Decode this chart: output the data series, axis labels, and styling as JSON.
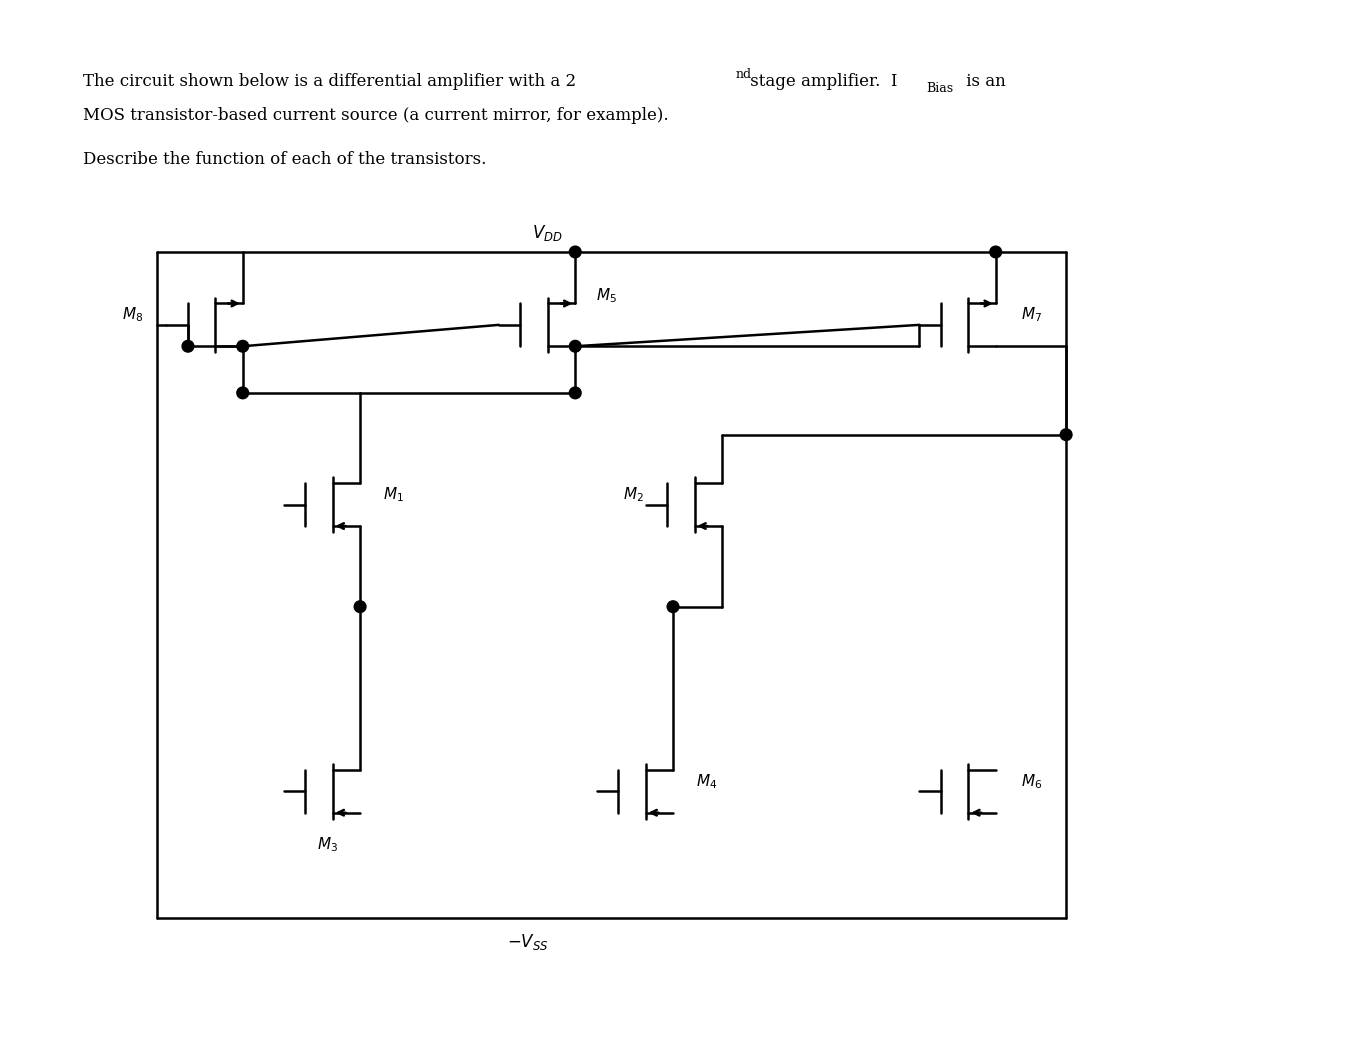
{
  "title_line1": "The circuit shown below is a differential amplifier with a 2",
  "title_nd": "nd",
  "title_line1_end": " stage amplifier.  I",
  "title_ibias_sub": "Bias",
  "title_line1_end2": " is an",
  "title_line2": "MOS transistor-based current source (a current mirror, for example).",
  "subtitle": "Describe the function of each of the transistors.",
  "bg_color": "#ffffff",
  "line_color": "#000000",
  "lw": 1.8,
  "fig_width": 13.57,
  "fig_height": 10.64
}
